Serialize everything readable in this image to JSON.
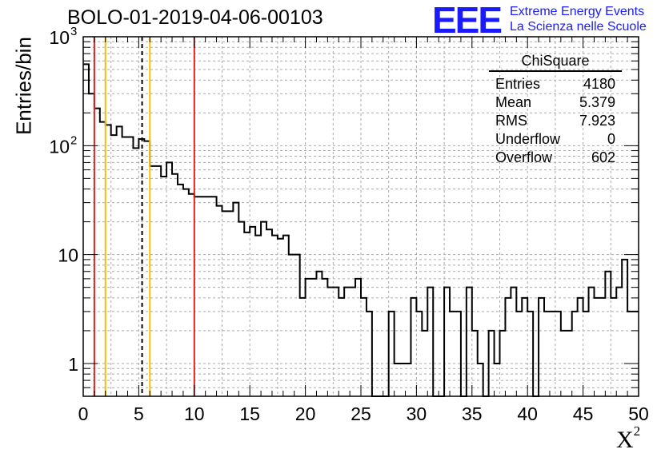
{
  "header": {
    "run_title": "BOLO-01-2019-04-06-00103",
    "logo": "EEE",
    "logo_line1": "Extreme Energy Events",
    "logo_line2": "La Scienza nelle Scuole"
  },
  "stats_box": {
    "title": "ChiSquare",
    "rows": [
      {
        "label": "Entries",
        "value": "4180"
      },
      {
        "label": "Mean",
        "value": "5.379"
      },
      {
        "label": "RMS",
        "value": "7.923"
      },
      {
        "label": "Underflow",
        "value": "0"
      },
      {
        "label": "Overflow",
        "value": "602"
      }
    ]
  },
  "chart_data": {
    "type": "bar",
    "style": "step histogram",
    "xlabel": "X",
    "xlabel_superscript": "2",
    "ylabel": "Entries/bin",
    "xlim": [
      0,
      50
    ],
    "ylim": [
      0.5,
      1000
    ],
    "y_scale": "log",
    "grid": true,
    "bin_width": 0.5,
    "x_ticks": [
      "0",
      "5",
      "10",
      "15",
      "20",
      "25",
      "30",
      "35",
      "40",
      "45",
      "50"
    ],
    "y_ticks": [
      {
        "value": 1,
        "label": "1"
      },
      {
        "value": 10,
        "label": "10"
      },
      {
        "value": 100,
        "label": "10",
        "exp": "2"
      },
      {
        "value": 1000,
        "label": "10",
        "exp": "3"
      }
    ],
    "bin_values": [
      560,
      300,
      220,
      165,
      155,
      125,
      150,
      120,
      120,
      95,
      115,
      110,
      65,
      65,
      52,
      70,
      55,
      44,
      40,
      36,
      34,
      34,
      34,
      34,
      28,
      25,
      25,
      30,
      20,
      16,
      18,
      15,
      20,
      17,
      15,
      14,
      15,
      10,
      10,
      4,
      6,
      6,
      7,
      6,
      5,
      5,
      4,
      5,
      5,
      6,
      4,
      3,
      0,
      0,
      0,
      3,
      1,
      1,
      1,
      4,
      3,
      2,
      5,
      0,
      0,
      5,
      3,
      3,
      0,
      5,
      2,
      1,
      0,
      2,
      1,
      2,
      4,
      5,
      3,
      4,
      3,
      0,
      4,
      3,
      3,
      3,
      2,
      2,
      3,
      4,
      3,
      5,
      4,
      4,
      7,
      4,
      5,
      9,
      3,
      3
    ],
    "vertical_lines": [
      {
        "x": 1,
        "color": "#e0201c",
        "style": "solid"
      },
      {
        "x": 2,
        "color": "#f2c200",
        "style": "solid"
      },
      {
        "x": 5.3,
        "color": "#000000",
        "style": "dashed"
      },
      {
        "x": 6,
        "color": "#f2c200",
        "style": "solid"
      },
      {
        "x": 10,
        "color": "#e0201c",
        "style": "solid"
      }
    ]
  }
}
